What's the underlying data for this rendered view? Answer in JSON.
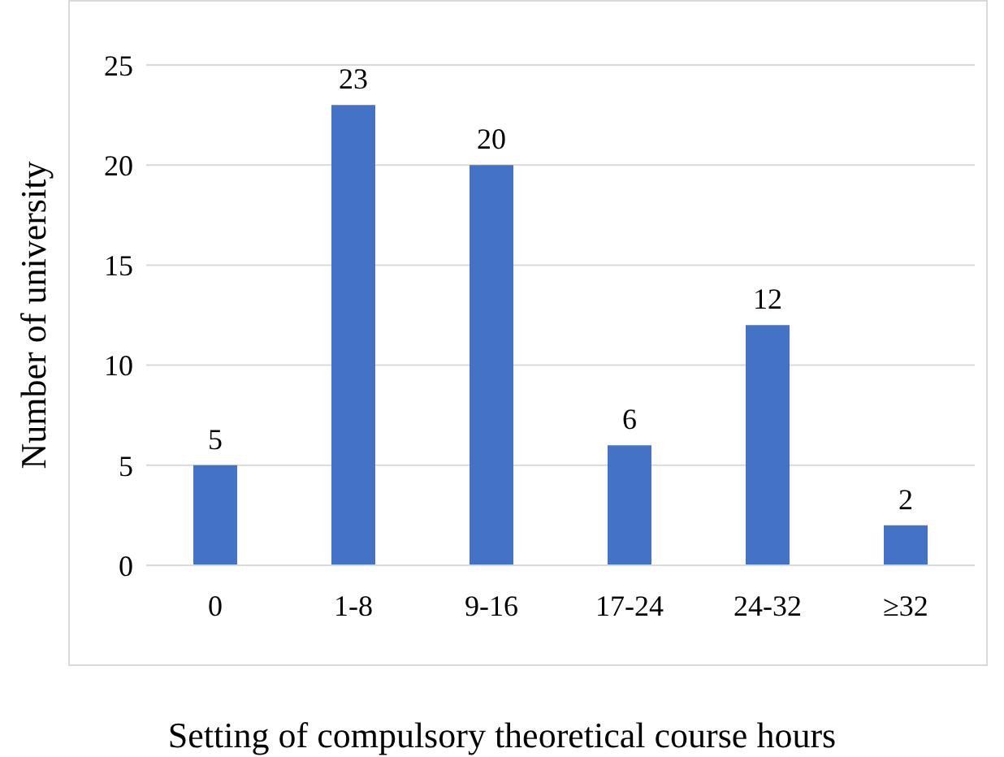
{
  "chart_data": {
    "type": "bar",
    "xlabel": "Setting of compulsory theoretical course hours",
    "ylabel": "Number of university",
    "categories": [
      "0",
      "1-8",
      "9-16",
      "17-24",
      "24-32",
      "≥32"
    ],
    "values": [
      5,
      23,
      20,
      6,
      12,
      2
    ],
    "color": "#4472c4",
    "ylim": [
      0,
      25
    ],
    "yticks": [
      0,
      5,
      10,
      15,
      20,
      25
    ],
    "grid": "y",
    "data_labels": true
  }
}
